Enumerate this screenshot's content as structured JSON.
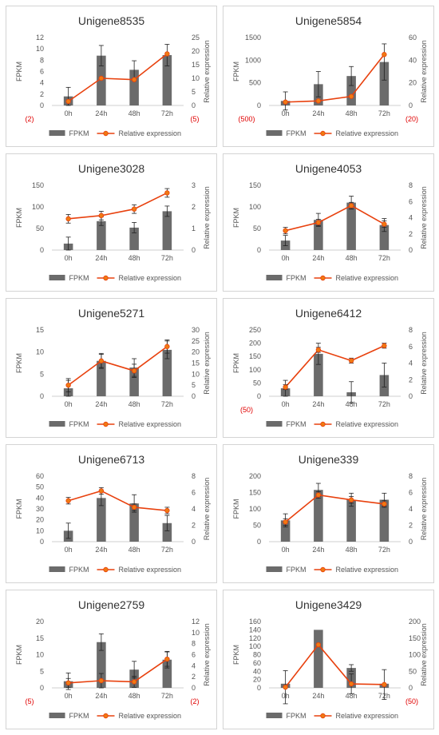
{
  "legend": {
    "bar_label": "FPKM",
    "line_label": "Relative expression"
  },
  "colors": {
    "bar": "#6b6b6b",
    "line": "#e8410e",
    "marker": "#f07a12",
    "neg_label": "#e00000",
    "frame": "#d4d4d4",
    "axis": "#cfcfcf",
    "text": "#555555",
    "title": "#333333",
    "error": "#222222"
  },
  "chart_data": [
    {
      "type": "bar",
      "title": "Unigene8535",
      "ylabel": "FPKM",
      "y2label": "Relative expression",
      "categories": [
        "0h",
        "24h",
        "48h",
        "72h"
      ],
      "ylim": [
        0,
        12
      ],
      "yticks": [
        0,
        2,
        4,
        6,
        8,
        10,
        12
      ],
      "y2lim": [
        0,
        25
      ],
      "y2ticks": [
        0,
        5,
        10,
        15,
        20,
        25
      ],
      "neg_left": "(2)",
      "neg_right": "(5)",
      "series": [
        {
          "name": "FPKM",
          "values": [
            1.6,
            8.8,
            6.3,
            8.9
          ],
          "errors": [
            1.6,
            1.8,
            1.6,
            1.9
          ]
        },
        {
          "name": "Relative expression",
          "values": [
            1.5,
            10,
            9.5,
            19
          ],
          "errors": [
            0,
            0,
            0,
            0
          ]
        }
      ],
      "legend": "bottom"
    },
    {
      "type": "bar",
      "title": "Unigene5854",
      "ylabel": "FPKM",
      "y2label": "Relative expression",
      "categories": [
        "0h",
        "24h",
        "48h",
        "72h"
      ],
      "ylim": [
        0,
        1500
      ],
      "yticks": [
        0,
        500,
        1000,
        1500
      ],
      "y2lim": [
        0,
        60
      ],
      "y2ticks": [
        0,
        20,
        40,
        60
      ],
      "neg_left": "(500)",
      "neg_right": "(20)",
      "series": [
        {
          "name": "FPKM",
          "values": [
            100,
            470,
            650,
            960
          ],
          "errors": [
            200,
            280,
            210,
            400
          ]
        },
        {
          "name": "Relative expression",
          "values": [
            3,
            4,
            8,
            45
          ],
          "errors": [
            0,
            0,
            0,
            0
          ]
        }
      ],
      "legend": "bottom"
    },
    {
      "type": "bar",
      "title": "Unigene3028",
      "ylabel": "FPKM",
      "y2label": "Relative expression",
      "categories": [
        "0h",
        "24h",
        "48h",
        "72h"
      ],
      "ylim": [
        0,
        150
      ],
      "yticks": [
        0,
        50,
        100,
        150
      ],
      "y2lim": [
        0,
        3
      ],
      "y2ticks": [
        0,
        1,
        2,
        3
      ],
      "neg_left": "",
      "neg_right": "",
      "series": [
        {
          "name": "FPKM",
          "values": [
            15,
            67,
            52,
            90
          ],
          "errors": [
            15,
            10,
            12,
            12
          ]
        },
        {
          "name": "Relative expression",
          "values": [
            1.45,
            1.6,
            1.9,
            2.65
          ],
          "errors": [
            0.2,
            0.2,
            0.2,
            0.2
          ]
        }
      ],
      "legend": "bottom"
    },
    {
      "type": "bar",
      "title": "Unigene4053",
      "ylabel": "FPKM",
      "y2label": "Relative expression",
      "categories": [
        "0h",
        "24h",
        "48h",
        "72h"
      ],
      "ylim": [
        0,
        150
      ],
      "yticks": [
        0,
        50,
        100,
        150
      ],
      "y2lim": [
        0,
        8
      ],
      "y2ticks": [
        0,
        2,
        4,
        6,
        8
      ],
      "neg_left": "",
      "neg_right": "",
      "series": [
        {
          "name": "FPKM",
          "values": [
            22,
            70,
            110,
            58
          ],
          "errors": [
            12,
            15,
            15,
            15
          ]
        },
        {
          "name": "Relative expression",
          "values": [
            2.4,
            3.4,
            5.5,
            3.2
          ],
          "errors": [
            0.4,
            0.4,
            0.4,
            0.4
          ]
        }
      ],
      "legend": "bottom"
    },
    {
      "type": "bar",
      "title": "Unigene5271",
      "ylabel": "FPKM",
      "y2label": "Relative expression",
      "categories": [
        "0h",
        "24h",
        "48h",
        "72h"
      ],
      "ylim": [
        0,
        15
      ],
      "yticks": [
        0,
        5,
        10,
        15
      ],
      "y2lim": [
        0,
        30
      ],
      "y2ticks": [
        0,
        5,
        10,
        15,
        20,
        25,
        30
      ],
      "neg_left": "",
      "neg_right": "",
      "series": [
        {
          "name": "FPKM",
          "values": [
            1.8,
            8,
            6.5,
            10.5
          ],
          "errors": [
            1.8,
            1.7,
            2,
            2
          ]
        },
        {
          "name": "Relative expression",
          "values": [
            5,
            16,
            11.5,
            22.5
          ],
          "errors": [
            3,
            3,
            3,
            3
          ]
        }
      ],
      "legend": "bottom"
    },
    {
      "type": "bar",
      "title": "Unigene6412",
      "ylabel": "FPKM",
      "y2label": "Relative expression",
      "categories": [
        "0h",
        "24h",
        "48h",
        "72h"
      ],
      "ylim": [
        0,
        250
      ],
      "yticks": [
        0,
        50,
        100,
        150,
        200,
        250
      ],
      "y2lim": [
        0,
        8
      ],
      "y2ticks": [
        0,
        2,
        4,
        6,
        8
      ],
      "neg_left": "(50)",
      "neg_right": "",
      "series": [
        {
          "name": "FPKM",
          "values": [
            30,
            160,
            15,
            80
          ],
          "errors": [
            30,
            40,
            40,
            45
          ]
        },
        {
          "name": "Relative expression",
          "values": [
            1.1,
            5.6,
            4.3,
            6.1
          ],
          "errors": [
            0.3,
            0.3,
            0.3,
            0.3
          ]
        }
      ],
      "legend": "bottom"
    },
    {
      "type": "bar",
      "title": "Unigene6713",
      "ylabel": "FPKM",
      "y2label": "Relative expression",
      "categories": [
        "0h",
        "24h",
        "48h",
        "72h"
      ],
      "ylim": [
        0,
        60
      ],
      "yticks": [
        0,
        10,
        20,
        30,
        40,
        50,
        60
      ],
      "y2lim": [
        0,
        8
      ],
      "y2ticks": [
        0,
        2,
        4,
        6,
        8
      ],
      "neg_left": "",
      "neg_right": "",
      "series": [
        {
          "name": "FPKM",
          "values": [
            10,
            40,
            35,
            17
          ],
          "errors": [
            7,
            7,
            8,
            7
          ]
        },
        {
          "name": "Relative expression",
          "values": [
            5,
            6.2,
            4.2,
            3.8
          ],
          "errors": [
            0.4,
            0.4,
            0.4,
            0.4
          ]
        }
      ],
      "legend": "bottom"
    },
    {
      "type": "bar",
      "title": "Unigene339",
      "ylabel": "FPKM",
      "y2label": "Relative expression",
      "categories": [
        "0h",
        "24h",
        "48h",
        "72h"
      ],
      "ylim": [
        0,
        200
      ],
      "yticks": [
        0,
        50,
        100,
        150,
        200
      ],
      "y2lim": [
        0,
        8
      ],
      "y2ticks": [
        0,
        2,
        4,
        6,
        8
      ],
      "neg_left": "",
      "neg_right": "",
      "series": [
        {
          "name": "FPKM",
          "values": [
            65,
            158,
            128,
            128
          ],
          "errors": [
            20,
            20,
            20,
            20
          ]
        },
        {
          "name": "Relative expression",
          "values": [
            2.4,
            5.7,
            5.1,
            4.6
          ],
          "errors": [
            0.4,
            0.4,
            0.4,
            0.4
          ]
        }
      ],
      "legend": "bottom"
    },
    {
      "type": "bar",
      "title": "Unigene2759",
      "ylabel": "FPKM",
      "y2label": "Relative expression",
      "categories": [
        "0h",
        "24h",
        "48h",
        "72h"
      ],
      "ylim": [
        0,
        20
      ],
      "yticks": [
        0,
        5,
        10,
        15,
        20
      ],
      "y2lim": [
        0,
        12
      ],
      "y2ticks": [
        0,
        2,
        4,
        6,
        8,
        10,
        12
      ],
      "neg_left": "(5)",
      "neg_right": "(2)",
      "series": [
        {
          "name": "FPKM",
          "values": [
            2,
            13.8,
            5.5,
            8.5
          ],
          "errors": [
            2.5,
            2.5,
            2.5,
            2.5
          ]
        },
        {
          "name": "Relative expression",
          "values": [
            0.9,
            1.3,
            1.1,
            5.2
          ],
          "errors": [
            0.8,
            1.3,
            1,
            1.3
          ]
        }
      ],
      "legend": "bottom"
    },
    {
      "type": "bar",
      "title": "Unigene3429",
      "ylabel": "FPKM",
      "y2label": "Relative expression",
      "categories": [
        "0h",
        "24h",
        "48h",
        "72h"
      ],
      "ylim": [
        0,
        160
      ],
      "yticks": [
        0,
        20,
        40,
        60,
        80,
        100,
        120,
        140,
        160
      ],
      "y2lim": [
        0,
        200
      ],
      "y2ticks": [
        0,
        50,
        100,
        150,
        200
      ],
      "neg_left": "",
      "neg_right": "(50)",
      "series": [
        {
          "name": "FPKM",
          "values": [
            10,
            140,
            48,
            10
          ],
          "errors": [
            0,
            0,
            8,
            0
          ]
        },
        {
          "name": "Relative expression",
          "values": [
            2,
            130,
            12,
            10
          ],
          "errors": [
            50,
            0,
            30,
            45
          ]
        }
      ],
      "legend": "bottom"
    }
  ]
}
